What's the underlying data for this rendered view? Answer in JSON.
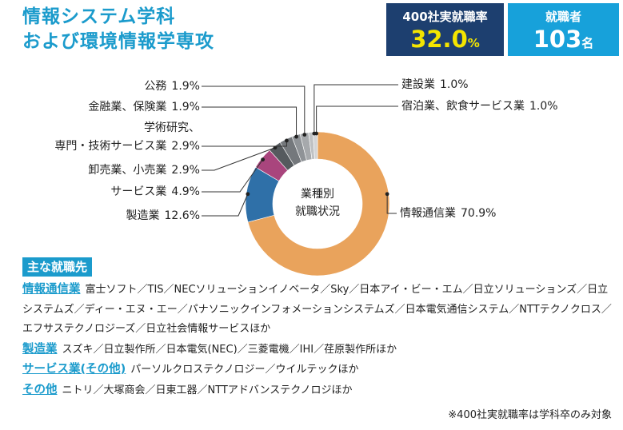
{
  "header": {
    "title_lines": [
      "情報システム学科",
      "および環境情報学専攻"
    ],
    "rate": {
      "label": "400社実就職率",
      "value": "32.0",
      "unit": "%"
    },
    "graduates": {
      "label": "就職者",
      "value": "103",
      "unit": "名"
    }
  },
  "chart_data": {
    "type": "donut",
    "title": "業種別\n就職状況",
    "categories": [
      "情報通信業",
      "製造業",
      "サービス業",
      "卸売業、小売業",
      "学術研究、\n専門・技術サービス業",
      "金融業、保険業",
      "公務",
      "建設業",
      "宿泊業、飲食サービス業"
    ],
    "values": [
      70.9,
      12.6,
      4.9,
      2.9,
      2.9,
      1.9,
      1.9,
      1.0,
      1.0
    ],
    "value_labels": [
      "70.9%",
      "12.6%",
      "4.9%",
      "2.9%",
      "2.9%",
      "1.9%",
      "1.9%",
      "1.0%",
      "1.0%"
    ],
    "colors": [
      "#e9a35c",
      "#2f70a8",
      "#a9457d",
      "#555a5e",
      "#74787c",
      "#8f9397",
      "#a6a9ac",
      "#bfc1c3",
      "#d3d4d6"
    ]
  },
  "employers": {
    "heading": "主な就職先",
    "entries": [
      {
        "label": "情報通信業",
        "text": "富士ソフト／TIS／NECソリューションイノベータ／Sky／日本アイ・ビー・エム／日立ソリューションズ／日立システムズ／ディー・エヌ・エー／パナソニックインフォメーションシステムズ／日本電気通信システム／NTTテクノクロス／エフサステクノロジーズ／日立社会情報サービスほか"
      },
      {
        "label": "製造業",
        "text": "スズキ／日立製作所／日本電気(NEC)／三菱電機／IHI／荏原製作所ほか"
      },
      {
        "label": "サービス業(その他)",
        "text": "パーソルクロステクノロジー／ウイルテックほか"
      },
      {
        "label": "その他",
        "text": "ニトリ／大塚商会／日東工器／NTTアドバンステクノロジほか"
      }
    ]
  },
  "footnote": "※400社実就職率は学科卒のみ対象"
}
